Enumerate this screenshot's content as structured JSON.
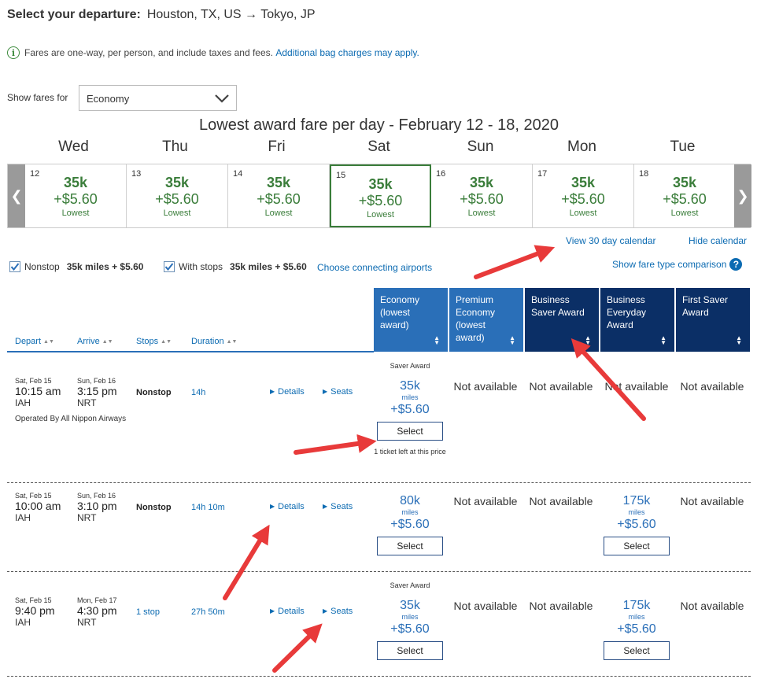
{
  "header": {
    "title_prefix": "Select your departure:",
    "title_route": "Houston, TX, US → Tokyo, JP",
    "notice_text": "Fares are one-way, per person, and include taxes and fees.",
    "notice_link": "Additional bag charges may apply."
  },
  "show_fares": {
    "label": "Show fares for",
    "value": "Economy"
  },
  "calendar": {
    "title": "Lowest award fare per day - February 12 - 18, 2020",
    "days": [
      {
        "name": "Wed",
        "num": "12",
        "miles": "35k",
        "fee": "+$5.60",
        "label": "Lowest"
      },
      {
        "name": "Thu",
        "num": "13",
        "miles": "35k",
        "fee": "+$5.60",
        "label": "Lowest"
      },
      {
        "name": "Fri",
        "num": "14",
        "miles": "35k",
        "fee": "+$5.60",
        "label": "Lowest"
      },
      {
        "name": "Sat",
        "num": "15",
        "miles": "35k",
        "fee": "+$5.60",
        "label": "Lowest"
      },
      {
        "name": "Sun",
        "num": "16",
        "miles": "35k",
        "fee": "+$5.60",
        "label": "Lowest"
      },
      {
        "name": "Mon",
        "num": "17",
        "miles": "35k",
        "fee": "+$5.60",
        "label": "Lowest"
      },
      {
        "name": "Tue",
        "num": "18",
        "miles": "35k",
        "fee": "+$5.60",
        "label": "Lowest"
      }
    ],
    "view_30_day": "View 30 day calendar",
    "hide_calendar": "Hide calendar"
  },
  "filters": {
    "nonstop_label": "Nonstop",
    "nonstop_price": "35k miles + $5.60",
    "with_stops_label": "With stops",
    "with_stops_price": "35k miles + $5.60",
    "connecting_link": "Choose connecting airports",
    "comparison_link": "Show fare type comparison"
  },
  "columns": {
    "sort": [
      "Depart",
      "Arrive",
      "Stops",
      "Duration"
    ],
    "fares": [
      {
        "label": "Economy (lowest award)",
        "style": "light"
      },
      {
        "label": "Premium Economy (lowest award)",
        "style": "light"
      },
      {
        "label": "Business Saver Award",
        "style": "dark"
      },
      {
        "label": "Business Everyday Award",
        "style": "dark"
      },
      {
        "label": "First Saver Award",
        "style": "dark"
      }
    ]
  },
  "flights": [
    {
      "dep_date": "Sat, Feb 15",
      "dep_time": "10:15 am",
      "dep_code": "IAH",
      "arr_date": "Sun, Feb 16",
      "arr_time": "3:15 pm",
      "arr_code": "NRT",
      "stops": "Nonstop",
      "duration": "14h",
      "details": "Details",
      "seats": "Seats",
      "operated": "Operated By All Nippon Airways",
      "economy": {
        "saver": "Saver Award",
        "miles": "35k",
        "miles_label": "miles",
        "fee": "+$5.60",
        "select": "Select",
        "tickets_left": "1 ticket left at this price"
      },
      "premium": "Not available",
      "business_saver": "Not available",
      "business_everyday": "Not available",
      "first_saver": "Not available"
    },
    {
      "dep_date": "Sat, Feb 15",
      "dep_time": "10:00 am",
      "dep_code": "IAH",
      "arr_date": "Sun, Feb 16",
      "arr_time": "3:10 pm",
      "arr_code": "NRT",
      "stops": "Nonstop",
      "duration": "14h 10m",
      "details": "Details",
      "seats": "Seats",
      "economy": {
        "miles": "80k",
        "miles_label": "miles",
        "fee": "+$5.60",
        "select": "Select"
      },
      "premium": "Not available",
      "business_saver": "Not available",
      "business_everyday": {
        "miles": "175k",
        "miles_label": "miles",
        "fee": "+$5.60",
        "select": "Select"
      },
      "first_saver": "Not available"
    },
    {
      "dep_date": "Sat, Feb 15",
      "dep_time": "9:40 pm",
      "dep_code": "IAH",
      "arr_date": "Mon, Feb 17",
      "arr_time": "4:30 pm",
      "arr_code": "NRT",
      "stops": "1 stop",
      "duration": "27h 50m",
      "details": "Details",
      "seats": "Seats",
      "economy": {
        "saver": "Saver Award",
        "miles": "35k",
        "miles_label": "miles",
        "fee": "+$5.60",
        "select": "Select"
      },
      "premium": "Not available",
      "business_saver": "Not available",
      "business_everyday": {
        "miles": "175k",
        "miles_label": "miles",
        "fee": "+$5.60",
        "select": "Select"
      },
      "first_saver": "Not available"
    }
  ],
  "colors": {
    "brand_blue": "#2a6fb8",
    "dark_navy": "#0b2f66",
    "fare_green": "#3a7d3a",
    "annotation_red": "#e83a3a"
  }
}
